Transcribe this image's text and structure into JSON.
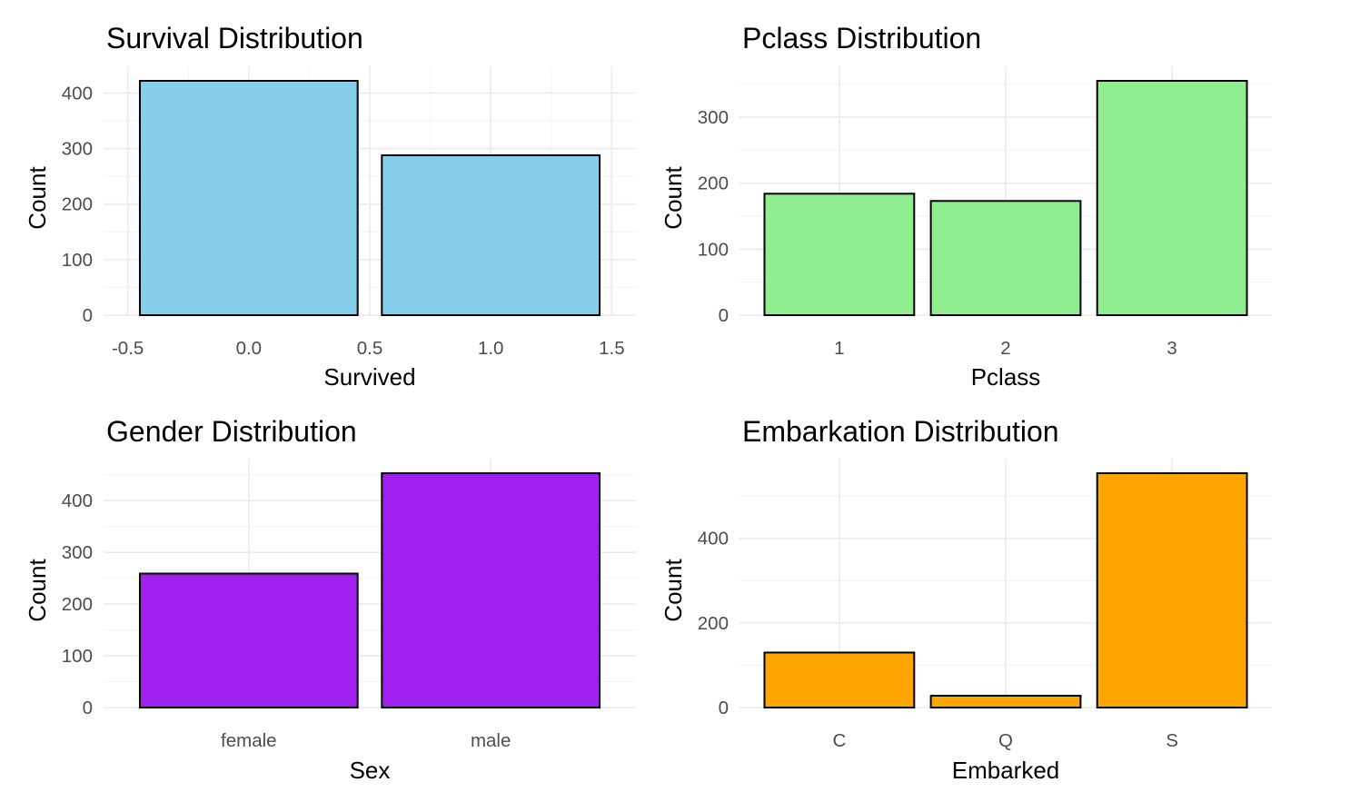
{
  "chart_data": [
    {
      "type": "bar",
      "title": "Survival Distribution",
      "xlabel": "Survived",
      "ylabel": "Count",
      "x_numeric": true,
      "x": [
        0,
        1
      ],
      "values": [
        422,
        288
      ],
      "xlim": [
        -0.5,
        1.5
      ],
      "xticks": [
        -0.5,
        0.0,
        0.5,
        1.0,
        1.5
      ],
      "xtick_labels": [
        "-0.5",
        "0.0",
        "0.5",
        "1.0",
        "1.5"
      ],
      "ylim": [
        0,
        422
      ],
      "yticks": [
        0,
        100,
        200,
        300,
        400
      ],
      "color": "#87CEEB",
      "grid": true
    },
    {
      "type": "bar",
      "title": "Pclass Distribution",
      "xlabel": "Pclass",
      "ylabel": "Count",
      "categories": [
        "1",
        "2",
        "3"
      ],
      "values": [
        184,
        173,
        355
      ],
      "ylim": [
        0,
        355
      ],
      "yticks": [
        0,
        100,
        200,
        300
      ],
      "color": "#90EE90",
      "grid": true
    },
    {
      "type": "bar",
      "title": "Gender Distribution",
      "xlabel": "Sex",
      "ylabel": "Count",
      "categories": [
        "female",
        "male"
      ],
      "values": [
        259,
        453
      ],
      "ylim": [
        0,
        453
      ],
      "yticks": [
        0,
        100,
        200,
        300,
        400
      ],
      "color": "#A020F0",
      "grid": true
    },
    {
      "type": "bar",
      "title": "Embarkation Distribution",
      "xlabel": "Embarked",
      "ylabel": "Count",
      "categories": [
        "C",
        "Q",
        "S"
      ],
      "values": [
        130,
        28,
        554
      ],
      "ylim": [
        0,
        554
      ],
      "yticks": [
        0,
        200,
        400
      ],
      "color": "#FFA500",
      "grid": true
    }
  ]
}
